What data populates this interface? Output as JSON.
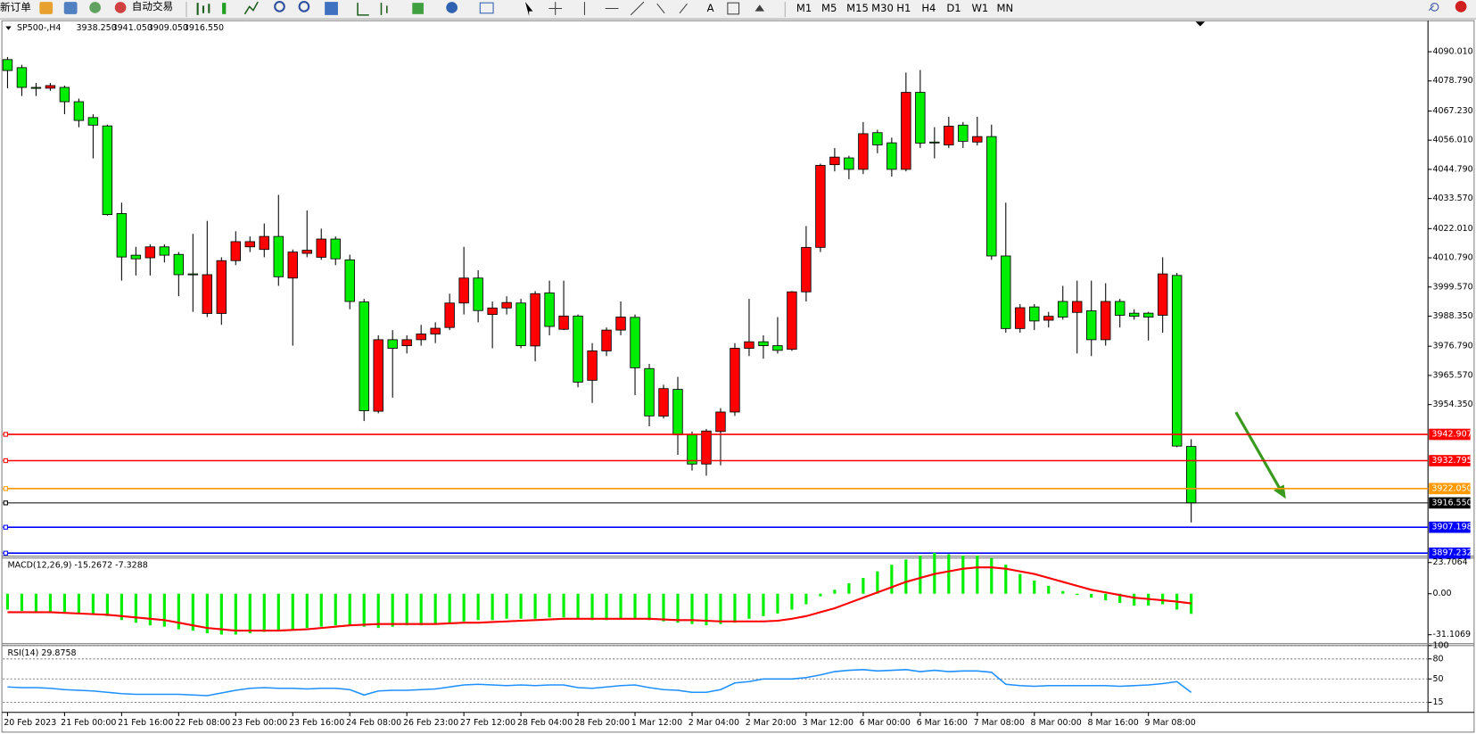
{
  "toolbar": {
    "new_order": "新订单",
    "auto_trading": "自动交易",
    "timeframes": [
      "M1",
      "M5",
      "M15",
      "M30",
      "H1",
      "H4",
      "D1",
      "W1",
      "MN"
    ]
  },
  "chart_data": [
    {
      "type": "candlestick",
      "title": "SP500-,H4",
      "info": [
        "3938.250",
        "3941.050",
        "3909.050",
        "3916.550"
      ],
      "up_color": "#ff0000",
      "down_color": "#00ee00",
      "categories": [
        "20 Feb 2023",
        null,
        null,
        null,
        "21 Feb 00:00",
        null,
        null,
        null,
        "21 Feb 16:00",
        null,
        null,
        null,
        "22 Feb 08:00",
        null,
        null,
        null,
        "23 Feb 00:00",
        null,
        null,
        null,
        "23 Feb 16:00",
        null,
        null,
        null,
        "24 Feb 08:00",
        null,
        null,
        null,
        "26 Feb 23:00",
        null,
        null,
        null,
        "27 Feb 12:00",
        null,
        null,
        null,
        "28 Feb 04:00",
        null,
        null,
        null,
        "28 Feb 20:00",
        null,
        null,
        null,
        "1 Mar 12:00",
        null,
        null,
        null,
        "2 Mar 04:00",
        null,
        null,
        null,
        "2 Mar 20:00",
        null,
        null,
        null,
        "3 Mar 12:00",
        null,
        null,
        null,
        "6 Mar 00:00",
        null,
        null,
        null,
        "6 Mar 16:00",
        null,
        null,
        null,
        "7 Mar 08:00",
        null,
        null,
        null,
        "8 Mar 00:00",
        null,
        null,
        null,
        "8 Mar 16:00",
        null,
        null,
        null,
        "9 Mar 08:00",
        null,
        null,
        null
      ],
      "open": [
        4087,
        4083.9,
        4076.3,
        4076,
        4076.3,
        4070.8,
        4064.7,
        4061.5,
        4027.8,
        4011.8,
        4010.8,
        4015,
        4012.1,
        4004.6,
        3989.4,
        3989.4,
        4009.7,
        4015,
        4014,
        4019,
        4003,
        4012.5,
        4011,
        4018,
        4010,
        3993.8,
        3951.8,
        3979.3,
        3977,
        3979.3,
        3981.5,
        3984,
        3993.4,
        4003,
        3989,
        3991.5,
        3993.4,
        3976.9,
        3997.3,
        3983.3,
        3988.4,
        3963.7,
        3975,
        3983,
        3987.9,
        3968.2,
        3949.9,
        3960.2,
        3942.7,
        3931.5,
        3944,
        3951.5,
        3976,
        3978.5,
        3977,
        3975.6,
        3997.7,
        4014.8,
        4046.6,
        4049.2,
        4044.8,
        4058.9,
        4055,
        4044.8,
        4074.4,
        4055.3,
        4054.2,
        4061.8,
        4055.3,
        4057.4,
        4011.5,
        3983.6,
        3991.9,
        3986.8,
        3994,
        3989.8,
        3990.4,
        3979.3,
        3994,
        3989.5,
        3989.5,
        3988.7,
        4004,
        3938.25
      ],
      "high": [
        4088,
        4085,
        4078,
        4078,
        4077,
        4072,
        4066,
        4062,
        4032,
        4015,
        4016,
        4016,
        4013,
        4020,
        4025,
        4011,
        4021,
        4019,
        4024,
        4035,
        4014,
        4029,
        4022,
        4019,
        4012,
        3995,
        3981,
        3983,
        3981,
        3985,
        3986,
        3997,
        4015,
        4006,
        3994,
        3996,
        3995,
        3998,
        4002,
        4002,
        3989,
        3978,
        3984,
        3994,
        3989,
        3970,
        3962,
        3965,
        3944,
        3945,
        3953,
        3978,
        3995,
        3981,
        3988,
        3998,
        4023,
        4047,
        4053,
        4050,
        4063,
        4060,
        4057,
        4082,
        4083,
        4061,
        4065,
        4063,
        4065,
        4062,
        4032,
        3993,
        3993,
        3990,
        4000,
        4002,
        4002,
        4001,
        3995,
        3991,
        3990,
        4011,
        4005,
        3941.05
      ],
      "low": [
        4076,
        4073,
        4073,
        4075,
        4066,
        4061,
        4049,
        4027,
        4002,
        4004,
        4004,
        4009,
        3996,
        3990,
        3988,
        3985,
        4008,
        4013,
        4011,
        4000,
        3977,
        4011,
        4010,
        4008,
        3991,
        3948,
        3951,
        3957,
        3974,
        3977,
        3978,
        3983,
        3989,
        3986,
        3976,
        3989,
        3976,
        3971,
        3981,
        3983,
        3961,
        3955,
        3973,
        3981,
        3958,
        3946,
        3949,
        3935,
        3929,
        3927,
        3931,
        3950,
        3973,
        3972,
        3974,
        3975,
        3994,
        4013,
        4044,
        4041,
        4043,
        4051,
        4042,
        4044,
        4053,
        4049,
        4053,
        4053,
        4054,
        4010,
        3982,
        3982,
        3983,
        3984,
        3987,
        3974,
        3973,
        3977,
        3984,
        3987,
        3979,
        3982,
        3938,
        3909.05
      ],
      "close": [
        4082.8,
        4076.3,
        4076.2,
        4077,
        4070.8,
        4063.6,
        4061.8,
        4027.4,
        4011.1,
        4010.4,
        4015,
        4011.8,
        4004.3,
        4004.5,
        4004.3,
        4009.7,
        4017,
        4017,
        4019,
        4003.5,
        4013,
        4013.7,
        4018,
        4010.4,
        3994,
        3952,
        3979.3,
        3976,
        3979.3,
        3981.5,
        3983.7,
        3993.4,
        4003,
        3990.5,
        3991.5,
        3993.6,
        3977,
        3997,
        3984.4,
        3988.4,
        3963,
        3975,
        3983,
        3988,
        3968.5,
        3950,
        3960.5,
        3942.7,
        3931.5,
        3944.2,
        3951.5,
        3976,
        3978.5,
        3977,
        3975.2,
        3997.7,
        4014.8,
        4046.3,
        4049.5,
        4044.8,
        4058.5,
        4054.2,
        4044.8,
        4074.4,
        4054.9,
        4055.2,
        4061.4,
        4055.6,
        4057.4,
        4011.5,
        3983.6,
        3991.6,
        3986.5,
        3988.3,
        3988,
        3994,
        3979.3,
        3994,
        3988.7,
        3988.3,
        3988,
        4004.6,
        3938.4,
        3916.55
      ],
      "ylim": [
        3896.08,
        4101.95
      ],
      "yticks": [
        {
          "value": 4090.01,
          "label": "4090.010"
        },
        {
          "value": 4078.79,
          "label": "4078.790"
        },
        {
          "value": 4067.23,
          "label": "4067.230"
        },
        {
          "value": 4056.01,
          "label": "4056.010"
        },
        {
          "value": 4044.79,
          "label": "4044.790"
        },
        {
          "value": 4033.57,
          "label": "4033.570"
        },
        {
          "value": 4022.01,
          "label": "4022.010"
        },
        {
          "value": 4010.79,
          "label": "4010.790"
        },
        {
          "value": 3999.57,
          "label": "3999.570"
        },
        {
          "value": 3988.35,
          "label": "3988.350"
        },
        {
          "value": 3976.79,
          "label": "3976.790"
        },
        {
          "value": 3965.57,
          "label": "3965.570"
        },
        {
          "value": 3954.35,
          "label": "3954.350"
        }
      ],
      "levels": [
        {
          "value": 3942.907,
          "label": "3942.907",
          "color": "#ff0000"
        },
        {
          "value": 3932.795,
          "label": "3932.795",
          "color": "#ff0000"
        },
        {
          "value": 3922.05,
          "label": "3922.050",
          "color": "#ff9900"
        },
        {
          "value": 3916.55,
          "label": "3916.550",
          "color": "#000000"
        },
        {
          "value": 3907.198,
          "label": "3907.198",
          "color": "#0000ff"
        },
        {
          "value": 3897.232,
          "label": "3897.232",
          "color": "#0000ff"
        }
      ]
    },
    {
      "type": "macd",
      "title": "MACD(12,26,9) -15.2672 -7.3288",
      "histogram": {
        "color": "#00ee00",
        "values": [
          -12,
          -13,
          -14,
          -14,
          -14,
          -15,
          -16,
          -17,
          -20,
          -22,
          -24,
          -25,
          -27,
          -28,
          -30,
          -31,
          -31,
          -30,
          -29,
          -28,
          -27,
          -26,
          -25,
          -24,
          -24,
          -25,
          -26,
          -25,
          -24,
          -24,
          -23,
          -22,
          -21,
          -20,
          -20,
          -19,
          -19,
          -19,
          -18,
          -18,
          -19,
          -20,
          -20,
          -19,
          -19,
          -20,
          -21,
          -22,
          -23,
          -24,
          -23,
          -22,
          -19,
          -17,
          -15,
          -12,
          -8,
          -2,
          3,
          8,
          12,
          17,
          22,
          26,
          29,
          31,
          30,
          29,
          29,
          27,
          22,
          15,
          10,
          6,
          2,
          -1,
          -3,
          -5,
          -7,
          -9,
          -9,
          -8,
          -12,
          -15.2672
        ]
      },
      "signal": {
        "color": "#ff0000",
        "values": [
          -14,
          -14,
          -14,
          -14,
          -14.5,
          -15,
          -15.5,
          -16,
          -17,
          -18,
          -19,
          -20,
          -22,
          -24,
          -26,
          -27,
          -28,
          -28,
          -28,
          -28,
          -27.5,
          -27,
          -26,
          -25,
          -24,
          -23.5,
          -23,
          -23,
          -23,
          -23,
          -23,
          -22.5,
          -22,
          -22,
          -21.5,
          -21,
          -20.5,
          -20,
          -19.5,
          -19,
          -19,
          -19,
          -19,
          -19,
          -19,
          -19,
          -19.5,
          -20,
          -20,
          -20.5,
          -21,
          -21,
          -21,
          -21,
          -20.5,
          -19,
          -17,
          -14,
          -11,
          -7,
          -3,
          1,
          5,
          9,
          12,
          15,
          17,
          19,
          20,
          20,
          19,
          17,
          15,
          12,
          9,
          6,
          3,
          1,
          -1,
          -3,
          -4,
          -5,
          -6,
          -7.3288
        ]
      },
      "ylim": [
        -37.9,
        27.1
      ],
      "yticks": [
        23.7064,
        {
          "value": 0,
          "label": "0.00"
        },
        -31.1069
      ]
    },
    {
      "type": "line",
      "title": "RSI(14) 29.8758",
      "color": "#1e90ff",
      "values": [
        38,
        37,
        37,
        36,
        34,
        33,
        32,
        30,
        28,
        27,
        27,
        27,
        27,
        26,
        25,
        29,
        33,
        36,
        37,
        36,
        36,
        35,
        36,
        36,
        34,
        26,
        32,
        33,
        33,
        34,
        35,
        38,
        41,
        42,
        41,
        40,
        41,
        40,
        41,
        41,
        37,
        36,
        38,
        40,
        41,
        37,
        34,
        33,
        30,
        30,
        34,
        44,
        46,
        50,
        50,
        50,
        52,
        56,
        61,
        63,
        64,
        62,
        63,
        64,
        61,
        63,
        61,
        62,
        62,
        60,
        42,
        40,
        39,
        40,
        40,
        40,
        40,
        40,
        39,
        40,
        41,
        43,
        46,
        29.8758
      ],
      "ylim": [
        0,
        100
      ],
      "yticks": [
        100,
        80,
        50,
        15
      ],
      "grid": true
    }
  ]
}
